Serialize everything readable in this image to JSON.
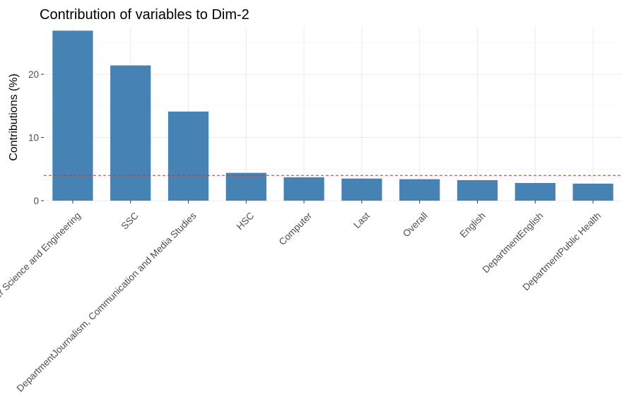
{
  "chart_data": {
    "type": "bar",
    "title": "Contribution of variables to Dim-2",
    "xlabel": "",
    "ylabel": "Contributions (%)",
    "categories": [
      "DepartmentComputer Science and Engineering",
      "SSC",
      "DepartmentJournalism, Communication and Media Studies",
      "HSC",
      "Computer",
      "Last",
      "Overall",
      "English",
      "DepartmentEnglish",
      "DepartmentPublic Health"
    ],
    "values": [
      26.9,
      21.4,
      14.1,
      4.4,
      3.7,
      3.5,
      3.4,
      3.25,
      2.8,
      2.7
    ],
    "reference_line": 4.0,
    "ylim": [
      0,
      27.5
    ],
    "yticks": [
      0,
      10,
      20
    ],
    "grid": true,
    "colors": {
      "bar": "#4682B4",
      "reference_line": "#c0392b"
    }
  }
}
